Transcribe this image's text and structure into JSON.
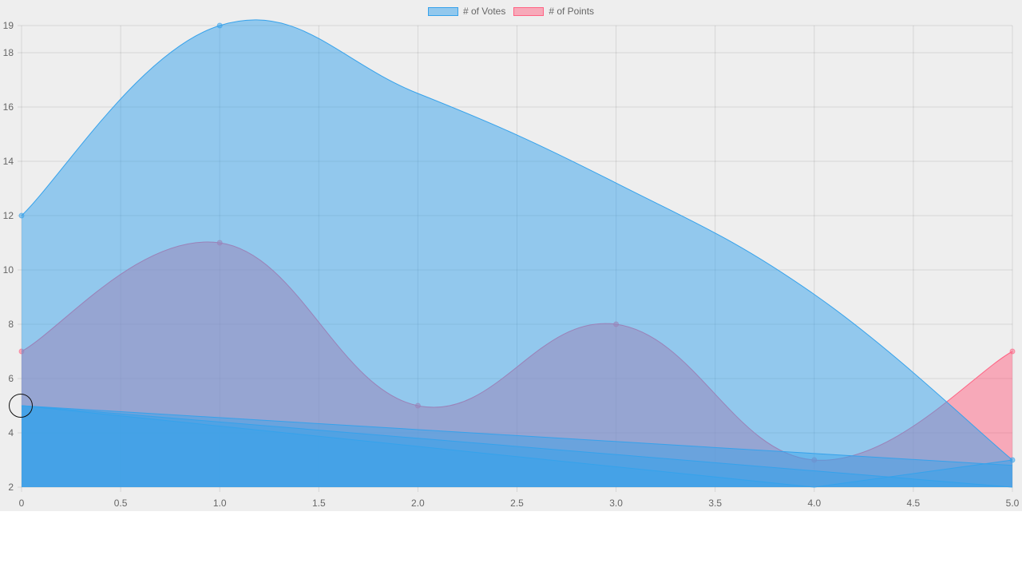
{
  "chart_data": {
    "type": "area",
    "title": "",
    "xlabel": "",
    "ylabel": "",
    "xlim": [
      0,
      5
    ],
    "ylim": [
      2,
      19
    ],
    "x_ticks": [
      "0",
      "0.5",
      "1.0",
      "1.5",
      "2.0",
      "2.5",
      "3.0",
      "3.5",
      "4.0",
      "4.5",
      "5.0"
    ],
    "y_ticks": [
      "2",
      "4",
      "6",
      "8",
      "10",
      "12",
      "14",
      "16",
      "18",
      "19"
    ],
    "grid": true,
    "legend_position": "top",
    "series": [
      {
        "name": "# of Votes",
        "color": "#36a2eb",
        "x": [
          0,
          1,
          2,
          3,
          4,
          5
        ],
        "y": [
          12,
          19,
          16.5,
          13.2,
          9.1,
          3
        ],
        "points": [
          [
            0,
            12
          ],
          [
            1,
            19
          ],
          [
            5,
            3
          ]
        ]
      },
      {
        "name": "# of Points",
        "color": "#ff6384",
        "x": [
          0,
          1,
          2,
          3,
          4,
          5
        ],
        "y": [
          7,
          11,
          5,
          8,
          3,
          7
        ],
        "points": [
          [
            0,
            7
          ],
          [
            1,
            11
          ],
          [
            2,
            5
          ],
          [
            3,
            8
          ],
          [
            4,
            3
          ],
          [
            5,
            7
          ]
        ]
      }
    ],
    "extra_layers": [
      {
        "color": "#36a2eb",
        "x": [
          0,
          5
        ],
        "y": [
          5,
          2.8
        ]
      },
      {
        "color": "#36a2eb",
        "x": [
          0,
          5
        ],
        "y": [
          5,
          2
        ]
      },
      {
        "color": "#36a2eb",
        "x": [
          0,
          4,
          5
        ],
        "y": [
          5,
          2,
          3
        ]
      }
    ]
  }
}
